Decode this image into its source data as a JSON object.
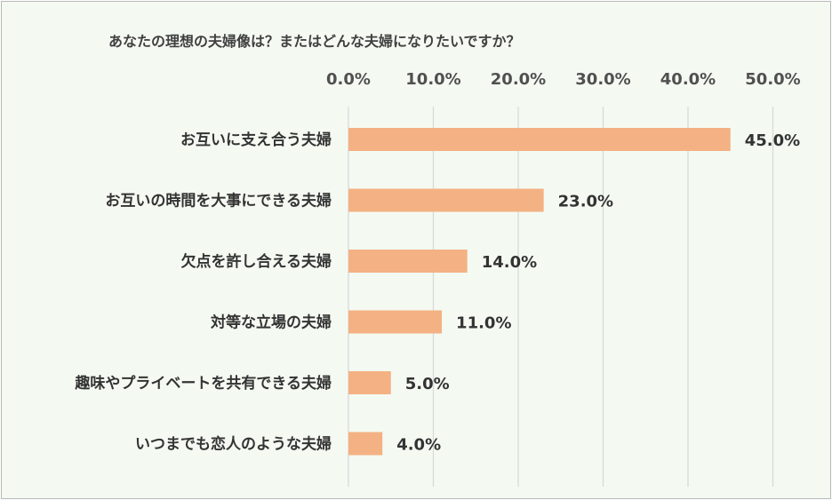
{
  "chart_data": {
    "type": "bar",
    "orientation": "horizontal",
    "title": "あなたの理想の夫婦像は？またはどんな夫婦になりたいですか？",
    "categories": [
      "お互いに支え合う夫婦",
      "お互いの時間を大事にできる夫婦",
      "欠点を許し合える夫婦",
      "対等な立場の夫婦",
      "趣味やプライベートを共有できる夫婦",
      "いつまでも恋人のような夫婦"
    ],
    "values": [
      45.0,
      23.0,
      14.0,
      11.0,
      5.0,
      4.0
    ],
    "value_labels": [
      "45.0%",
      "23.0%",
      "14.0%",
      "11.0%",
      "5.0%",
      "4.0%"
    ],
    "xlim": [
      0,
      50
    ],
    "ticks": [
      0,
      10,
      20,
      30,
      40,
      50
    ],
    "tick_labels": [
      "0.0%",
      "10.0%",
      "20.0%",
      "30.0%",
      "40.0%",
      "50.0%"
    ],
    "axis_position": "top",
    "grid": true,
    "bar_color": "#f4b183",
    "grid_color": "#d9d9d9"
  }
}
